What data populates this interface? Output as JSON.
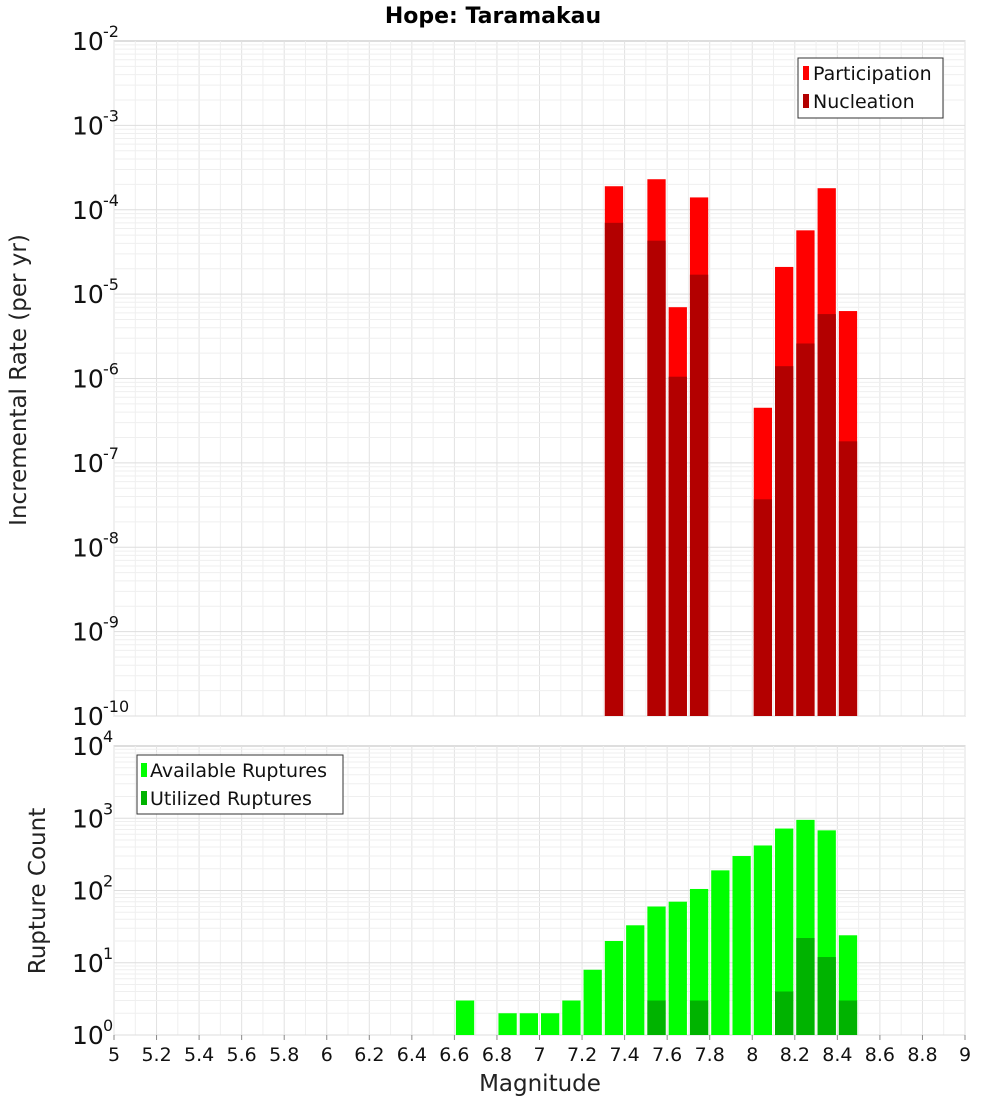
{
  "chart_data": [
    {
      "type": "bar",
      "title": "Hope: Taramakau",
      "xlabel": "",
      "ylabel": "Incremental Rate (per yr)",
      "xlim": [
        5,
        9
      ],
      "ylim_exp": [
        -10,
        -2
      ],
      "yscale": "log",
      "ytick_base": "10",
      "ytick_exps": [
        "-10",
        "-9",
        "-8",
        "-7",
        "-6",
        "-5",
        "-4",
        "-3",
        "-2"
      ],
      "bar_width": 0.1,
      "grid": true,
      "legend": {
        "position": "top-right",
        "entries": [
          "Participation",
          "Nucleation"
        ]
      },
      "series": [
        {
          "name": "Participation",
          "color": "#ff0000",
          "x": [
            7.35,
            7.55,
            7.65,
            7.75,
            8.05,
            8.15,
            8.25,
            8.35,
            8.45
          ],
          "values": [
            0.00019,
            0.00023,
            7e-06,
            0.00014,
            4.5e-07,
            2.1e-05,
            5.7e-05,
            0.00018,
            6.3e-06
          ]
        },
        {
          "name": "Nucleation",
          "color": "#b30000",
          "x": [
            7.35,
            7.55,
            7.65,
            7.75,
            8.05,
            8.15,
            8.25,
            8.35,
            8.45
          ],
          "values": [
            7e-05,
            4.3e-05,
            1.05e-06,
            1.7e-05,
            3.7e-08,
            1.4e-06,
            2.6e-06,
            5.8e-06,
            1.8e-07
          ]
        }
      ]
    },
    {
      "type": "bar",
      "xlabel": "Magnitude",
      "ylabel": "Rupture Count",
      "xlim": [
        5,
        9
      ],
      "ylim_exp": [
        0,
        4
      ],
      "yscale": "log",
      "ytick_base": "10",
      "ytick_exps": [
        "0",
        "1",
        "2",
        "3",
        "4"
      ],
      "xticks": [
        "5",
        "5.2",
        "5.4",
        "5.6",
        "5.8",
        "6",
        "6.2",
        "6.4",
        "6.6",
        "6.8",
        "7",
        "7.2",
        "7.4",
        "7.6",
        "7.8",
        "8",
        "8.2",
        "8.4",
        "8.6",
        "8.8",
        "9"
      ],
      "bar_width": 0.1,
      "grid": true,
      "legend": {
        "position": "top-left",
        "entries": [
          "Available Ruptures",
          "Utilized Ruptures"
        ]
      },
      "series": [
        {
          "name": "Available Ruptures",
          "color": "#00ff00",
          "x": [
            6.65,
            6.85,
            6.95,
            7.05,
            7.15,
            7.25,
            7.35,
            7.45,
            7.55,
            7.65,
            7.75,
            7.85,
            7.95,
            8.05,
            8.15,
            8.25,
            8.35,
            8.45
          ],
          "values": [
            3,
            2,
            2,
            2,
            3,
            8,
            20,
            33,
            60,
            70,
            105,
            190,
            300,
            420,
            720,
            950,
            680,
            24
          ]
        },
        {
          "name": "Utilized Ruptures",
          "color": "#00b300",
          "x": [
            7.35,
            7.55,
            7.65,
            7.75,
            8.05,
            8.15,
            8.25,
            8.35,
            8.45
          ],
          "values": [
            1,
            3,
            1,
            3,
            1,
            4,
            22,
            12,
            3
          ]
        }
      ]
    }
  ]
}
